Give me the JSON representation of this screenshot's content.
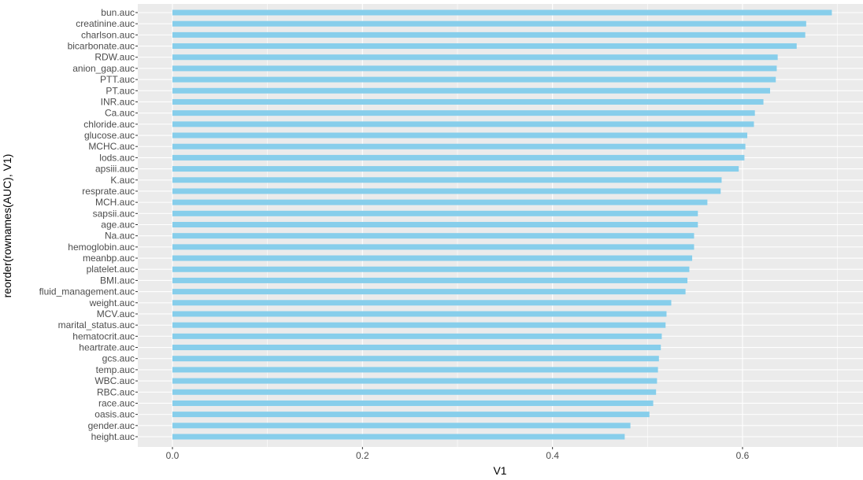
{
  "chart_data": {
    "type": "bar",
    "orientation": "horizontal",
    "xlabel": "V1",
    "ylabel": "reorder(rownames(AUC), V1)",
    "xlim": [
      -0.055,
      0.729
    ],
    "x_ticks": [
      0.0,
      0.2,
      0.4,
      0.6
    ],
    "x_tick_labels": [
      "0.0",
      "0.2",
      "0.4",
      "0.6"
    ],
    "grid": true,
    "colors": {
      "bar": "#87CEEB",
      "panel": "#EBEBEB",
      "grid": "#FFFFFF"
    },
    "categories": [
      "bun.auc",
      "creatinine.auc",
      "charlson.auc",
      "bicarbonate.auc",
      "RDW.auc",
      "anion_gap.auc",
      "PTT.auc",
      "PT.auc",
      "INR.auc",
      "Ca.auc",
      "chloride.auc",
      "glucose.auc",
      "MCHC.auc",
      "lods.auc",
      "apsiii.auc",
      "K.auc",
      "resprate.auc",
      "MCH.auc",
      "sapsii.auc",
      "age.auc",
      "Na.auc",
      "hemoglobin.auc",
      "meanbp.auc",
      "platelet.auc",
      "BMI.auc",
      "fluid_management.auc",
      "weight.auc",
      "MCV.auc",
      "marital_status.auc",
      "hematocrit.auc",
      "heartrate.auc",
      "gcs.auc",
      "temp.auc",
      "WBC.auc",
      "RBC.auc",
      "race.auc",
      "oasis.auc",
      "gender.auc",
      "height.auc"
    ],
    "values": [
      0.694,
      0.667,
      0.666,
      0.657,
      0.637,
      0.636,
      0.635,
      0.629,
      0.622,
      0.613,
      0.612,
      0.605,
      0.603,
      0.602,
      0.596,
      0.578,
      0.577,
      0.563,
      0.553,
      0.553,
      0.549,
      0.549,
      0.547,
      0.544,
      0.542,
      0.54,
      0.525,
      0.52,
      0.519,
      0.515,
      0.514,
      0.512,
      0.511,
      0.51,
      0.509,
      0.506,
      0.502,
      0.482,
      0.476
    ]
  }
}
